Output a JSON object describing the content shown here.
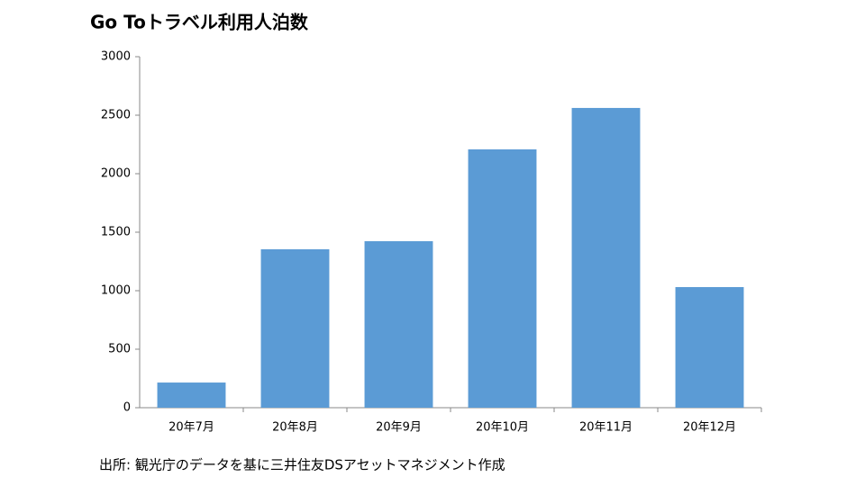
{
  "chart_data": {
    "type": "bar",
    "title": "Go Toトラベル利用人泊数",
    "categories": [
      "20年7月",
      "20年8月",
      "20年9月",
      "20年10月",
      "20年11月",
      "20年12月"
    ],
    "values": [
      215,
      1354,
      1423,
      2208,
      2562,
      1031
    ],
    "color": "#5b9bd5",
    "ylim": [
      0,
      3000
    ],
    "yticks": [
      0,
      500,
      1000,
      1500,
      2000,
      2500,
      3000
    ],
    "grid": false,
    "source": "出所: 観光庁のデータを基に三井住友DSアセットマネジメント作成"
  }
}
